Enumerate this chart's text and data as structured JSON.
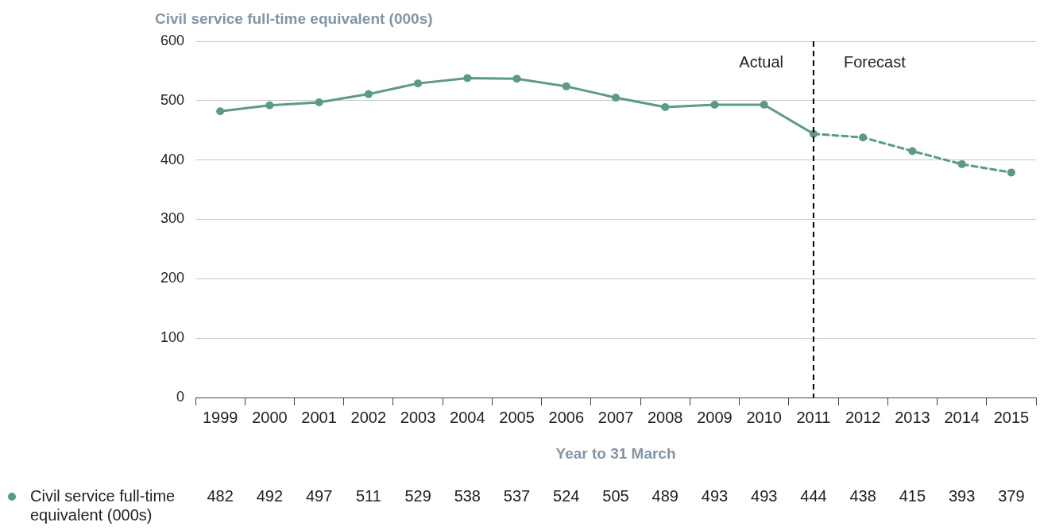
{
  "chart_data": {
    "type": "line",
    "title": "Civil service full-time equivalent (000s)",
    "xlabel": "Year to 31 March",
    "categories": [
      "1999",
      "2000",
      "2001",
      "2002",
      "2003",
      "2004",
      "2005",
      "2006",
      "2007",
      "2008",
      "2009",
      "2010",
      "2011",
      "2012",
      "2013",
      "2014",
      "2015"
    ],
    "series": [
      {
        "name": "Civil service full-time equivalent (000s)",
        "color": "#5b9a8b",
        "line_style": "solid",
        "values": [
          482,
          492,
          497,
          511,
          529,
          538,
          537,
          524,
          505,
          489,
          493,
          493,
          444,
          438,
          415,
          393,
          379
        ]
      }
    ],
    "ylim": [
      0,
      600
    ],
    "yticks": [
      0,
      100,
      200,
      300,
      400,
      500,
      600
    ],
    "grid": "y",
    "marker": "circle",
    "data_labels": true,
    "legend": "bottom left",
    "ref_lines": [
      {
        "axis": "x",
        "value": "2011",
        "color": "#000000",
        "line_style": "dashed"
      }
    ],
    "annotations": [
      "Actual",
      "Forecast"
    ]
  }
}
